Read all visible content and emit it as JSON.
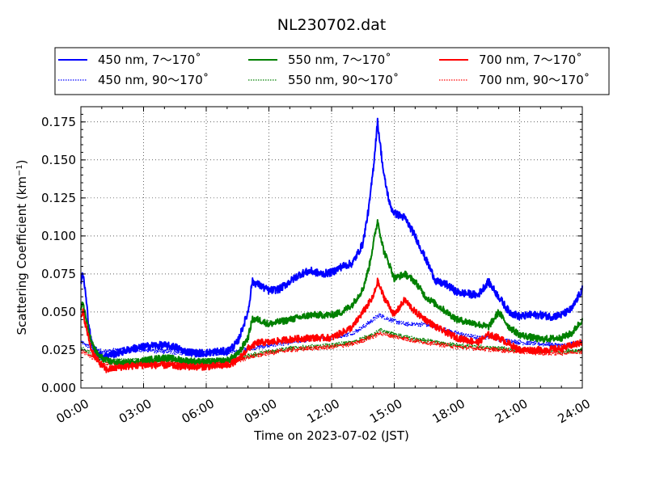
{
  "chart_data": {
    "type": "line",
    "title": "NL230702.dat",
    "xlabel": "Time on 2023-07-02 (JST)",
    "ylabel": "Scattering Coefficient (km",
    "ylabel_unit_sup": "−1",
    "ylabel_close": ")",
    "xlim": [
      0,
      24
    ],
    "ylim": [
      0,
      0.185
    ],
    "x_ticks": [
      0,
      3,
      6,
      9,
      12,
      15,
      18,
      21,
      24
    ],
    "x_tick_labels": [
      "00:00",
      "03:00",
      "06:00",
      "09:00",
      "12:00",
      "15:00",
      "18:00",
      "21:00",
      "24:00"
    ],
    "y_ticks": [
      0,
      0.025,
      0.05,
      0.075,
      0.1,
      0.125,
      0.15,
      0.175
    ],
    "y_tick_labels": [
      "0.000",
      "0.025",
      "0.050",
      "0.075",
      "0.100",
      "0.125",
      "0.150",
      "0.175"
    ],
    "grid": true,
    "legend_position": "top-outside",
    "x_unit": "hours (JST)",
    "series": [
      {
        "name": "450 nm, 7～170˚",
        "color": "#0000ff",
        "style": "solid",
        "noise": 0.0025,
        "x": [
          0,
          0.1,
          0.2,
          0.35,
          0.5,
          0.7,
          1,
          1.5,
          2,
          2.5,
          3,
          3.5,
          4,
          4.5,
          5,
          5.5,
          6,
          6.5,
          7,
          7.5,
          8,
          8.2,
          8.5,
          9,
          9.5,
          10,
          10.5,
          11,
          11.5,
          12,
          12.5,
          13,
          13.5,
          13.8,
          14,
          14.2,
          14.5,
          14.8,
          15,
          15.5,
          16,
          16.5,
          17,
          17.5,
          18,
          18.5,
          19,
          19.5,
          20,
          20.5,
          21,
          21.5,
          22,
          22.5,
          23,
          23.5,
          24
        ],
        "y": [
          0.07,
          0.075,
          0.065,
          0.045,
          0.03,
          0.024,
          0.021,
          0.022,
          0.024,
          0.026,
          0.027,
          0.028,
          0.028,
          0.027,
          0.024,
          0.023,
          0.023,
          0.024,
          0.024,
          0.03,
          0.05,
          0.07,
          0.068,
          0.064,
          0.065,
          0.07,
          0.075,
          0.077,
          0.075,
          0.076,
          0.08,
          0.082,
          0.095,
          0.12,
          0.145,
          0.175,
          0.14,
          0.12,
          0.115,
          0.112,
          0.1,
          0.085,
          0.07,
          0.068,
          0.063,
          0.062,
          0.061,
          0.07,
          0.06,
          0.05,
          0.047,
          0.048,
          0.048,
          0.047,
          0.048,
          0.052,
          0.065
        ]
      },
      {
        "name": "450 nm, 90～170˚",
        "color": "#0000ff",
        "style": "dotted",
        "noise": 0.0015,
        "x": [
          0,
          0.3,
          0.7,
          1,
          2,
          3,
          4,
          5,
          6,
          7,
          7.5,
          8,
          9,
          10,
          11,
          12,
          13,
          13.5,
          14,
          14.3,
          14.8,
          15.5,
          16.5,
          17,
          18,
          19,
          19.7,
          20,
          21,
          22,
          23,
          24
        ],
        "y": [
          0.03,
          0.028,
          0.026,
          0.024,
          0.025,
          0.025,
          0.024,
          0.023,
          0.023,
          0.023,
          0.024,
          0.026,
          0.028,
          0.03,
          0.032,
          0.033,
          0.036,
          0.04,
          0.045,
          0.048,
          0.045,
          0.042,
          0.042,
          0.04,
          0.036,
          0.033,
          0.034,
          0.032,
          0.03,
          0.029,
          0.028,
          0.03
        ]
      },
      {
        "name": "550 nm, 7～170˚",
        "color": "#008000",
        "style": "solid",
        "noise": 0.0022,
        "x": [
          0,
          0.1,
          0.25,
          0.5,
          0.8,
          1.2,
          2,
          3,
          4,
          5,
          6,
          7,
          7.5,
          8,
          8.2,
          8.5,
          9,
          10,
          11,
          12,
          12.5,
          13,
          13.5,
          13.8,
          14,
          14.2,
          14.5,
          14.8,
          15,
          15.5,
          16,
          16.5,
          17,
          18,
          19,
          19.5,
          20,
          20.5,
          21,
          22,
          23,
          23.5,
          24
        ],
        "y": [
          0.05,
          0.057,
          0.045,
          0.03,
          0.022,
          0.018,
          0.016,
          0.018,
          0.02,
          0.018,
          0.017,
          0.018,
          0.022,
          0.033,
          0.045,
          0.045,
          0.042,
          0.045,
          0.048,
          0.048,
          0.05,
          0.055,
          0.065,
          0.08,
          0.095,
          0.11,
          0.09,
          0.08,
          0.072,
          0.075,
          0.07,
          0.06,
          0.055,
          0.045,
          0.042,
          0.04,
          0.05,
          0.04,
          0.035,
          0.032,
          0.033,
          0.036,
          0.045
        ]
      },
      {
        "name": "550 nm, 90～170˚",
        "color": "#008000",
        "style": "dotted",
        "noise": 0.0015,
        "x": [
          0,
          0.3,
          0.7,
          1,
          2,
          3,
          4,
          5,
          6,
          7,
          7.5,
          8,
          9,
          10,
          11,
          12,
          13,
          14,
          14.3,
          15,
          16,
          17,
          18,
          19,
          20,
          21,
          22,
          23,
          24
        ],
        "y": [
          0.026,
          0.024,
          0.021,
          0.018,
          0.018,
          0.018,
          0.019,
          0.018,
          0.018,
          0.018,
          0.019,
          0.021,
          0.024,
          0.026,
          0.027,
          0.028,
          0.03,
          0.035,
          0.038,
          0.035,
          0.032,
          0.03,
          0.028,
          0.027,
          0.026,
          0.025,
          0.024,
          0.024,
          0.025
        ]
      },
      {
        "name": "700 nm, 7～170˚",
        "color": "#ff0000",
        "style": "solid",
        "noise": 0.0022,
        "x": [
          0,
          0.1,
          0.25,
          0.5,
          0.8,
          1.2,
          2,
          3,
          4,
          5,
          6,
          7,
          7.5,
          8,
          8.5,
          9,
          10,
          11,
          12,
          13,
          13.5,
          14,
          14.2,
          14.5,
          15,
          15.5,
          16,
          17,
          18,
          19,
          19.5,
          20,
          21,
          22,
          23,
          24
        ],
        "y": [
          0.045,
          0.05,
          0.04,
          0.025,
          0.018,
          0.012,
          0.014,
          0.015,
          0.015,
          0.014,
          0.014,
          0.015,
          0.018,
          0.026,
          0.03,
          0.03,
          0.032,
          0.033,
          0.033,
          0.04,
          0.05,
          0.06,
          0.07,
          0.06,
          0.048,
          0.058,
          0.05,
          0.04,
          0.033,
          0.03,
          0.035,
          0.033,
          0.025,
          0.025,
          0.026,
          0.03
        ]
      },
      {
        "name": "700 nm, 90～170˚",
        "color": "#ff0000",
        "style": "dotted",
        "noise": 0.0015,
        "x": [
          0,
          0.3,
          0.7,
          1,
          2,
          3,
          4,
          5,
          6,
          7,
          7.5,
          8,
          9,
          10,
          11,
          12,
          13,
          14,
          14.3,
          15,
          16,
          17,
          18,
          19,
          20,
          21,
          22,
          23,
          24
        ],
        "y": [
          0.024,
          0.022,
          0.019,
          0.016,
          0.016,
          0.016,
          0.017,
          0.016,
          0.016,
          0.017,
          0.018,
          0.02,
          0.023,
          0.025,
          0.026,
          0.027,
          0.029,
          0.034,
          0.036,
          0.034,
          0.031,
          0.029,
          0.027,
          0.026,
          0.025,
          0.024,
          0.023,
          0.023,
          0.024
        ]
      }
    ]
  }
}
